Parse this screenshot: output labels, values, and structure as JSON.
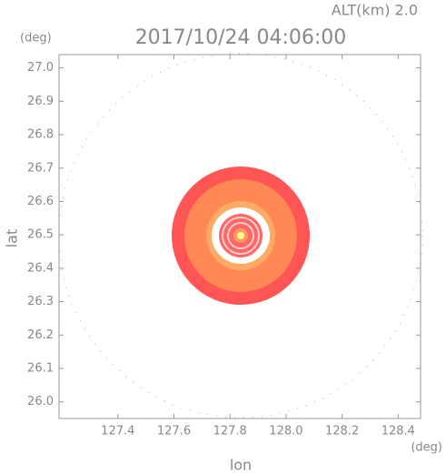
{
  "chart_data": {
    "type": "radar-map",
    "title": "2017/10/24 04:06:00",
    "subtitle": "ALT(km) 2.0",
    "xlabel": "lon",
    "ylabel": "lat",
    "xunit": "(deg)",
    "yunit": "(deg)",
    "xlim": [
      127.19,
      128.48
    ],
    "ylim": [
      25.95,
      27.04
    ],
    "xticks": [
      127.4,
      127.6,
      127.8,
      {
        "value": 128.0,
        "label": "128.0"
      },
      128.2,
      128.4
    ],
    "yticks": [
      {
        "value": 26.0,
        "label": "26.0"
      },
      26.1,
      26.2,
      26.3,
      26.4,
      26.5,
      26.6,
      26.7,
      26.8,
      26.9,
      {
        "value": 27.0,
        "label": "27.0"
      }
    ]
  }
}
